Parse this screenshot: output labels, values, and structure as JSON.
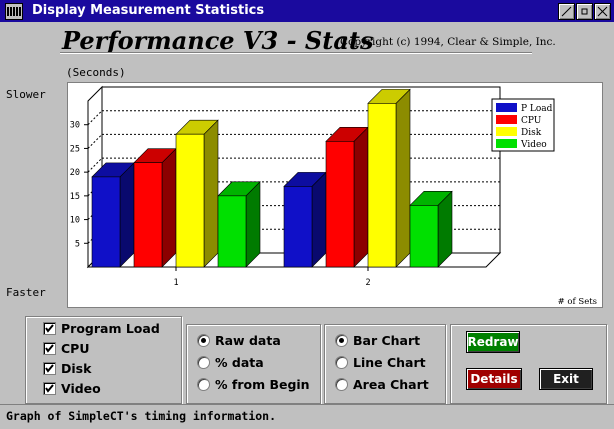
{
  "window": {
    "title": "Display Measurement Statistics"
  },
  "header": {
    "app_title": "Performance V3  -  Stats",
    "copyright": "Copyright (c) 1994, Clear & Simple, Inc."
  },
  "axis_labels": {
    "unit": "(Seconds)",
    "top": "Slower",
    "bottom": "Faster"
  },
  "chart_data": {
    "type": "bar",
    "categories": [
      "1",
      "2"
    ],
    "series": [
      {
        "name": "P Load",
        "values": [
          19,
          17
        ]
      },
      {
        "name": "CPU",
        "values": [
          22,
          26.5
        ]
      },
      {
        "name": "Disk",
        "values": [
          28,
          34.5
        ]
      },
      {
        "name": "Video",
        "values": [
          15,
          13
        ]
      }
    ],
    "colors": [
      "#1010c8",
      "#ff0000",
      "#ffff00",
      "#00e000"
    ],
    "yticks": [
      5,
      10,
      15,
      20,
      25,
      30
    ],
    "ylim": [
      0,
      35
    ],
    "xlabel": "# of Sets",
    "grid": true,
    "legend": "top-right"
  },
  "options": {
    "checks": [
      {
        "label": "Program Load",
        "checked": true
      },
      {
        "label": "CPU",
        "checked": true
      },
      {
        "label": "Disk",
        "checked": true
      },
      {
        "label": "Video",
        "checked": true
      }
    ],
    "data_mode": [
      {
        "label": "Raw data",
        "selected": true
      },
      {
        "label": "% data",
        "selected": false
      },
      {
        "label": "% from Begin",
        "selected": false
      }
    ],
    "chart_type": [
      {
        "label": "Bar Chart",
        "selected": true
      },
      {
        "label": "Line Chart",
        "selected": false
      },
      {
        "label": "Area Chart",
        "selected": false
      }
    ]
  },
  "buttons": {
    "redraw": "Redraw",
    "details": "Details",
    "exit": "Exit"
  },
  "button_colors": {
    "redraw": "#008000",
    "details": "#a00000",
    "exit": "#202020"
  },
  "status": "Graph of SimpleCT's timing information."
}
